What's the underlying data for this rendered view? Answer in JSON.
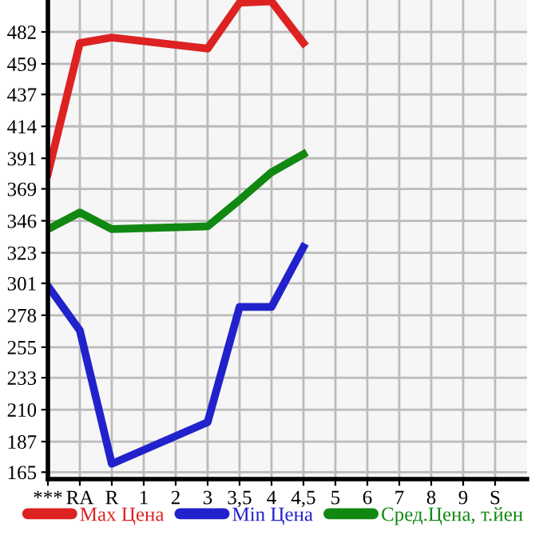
{
  "chart_data": {
    "type": "line",
    "categories": [
      "***",
      "RA",
      "R",
      "1",
      "2",
      "3",
      "3,5",
      "4",
      "4,5",
      "5",
      "6",
      "7",
      "8",
      "9",
      "S"
    ],
    "series": [
      {
        "name": "Max Цена",
        "color": "#dd2222",
        "values": [
          380,
          474,
          478,
          null,
          null,
          470,
          503,
          504,
          474,
          null,
          null,
          null,
          null,
          null,
          null
        ]
      },
      {
        "name": "Min Цена",
        "color": "#2222cc",
        "values": [
          299,
          267,
          171,
          null,
          null,
          201,
          284,
          284,
          327,
          null,
          null,
          null,
          null,
          null,
          null
        ]
      },
      {
        "name": "Сред.Цена, т.йен",
        "color": "#118811",
        "values": [
          340,
          352,
          340,
          null,
          null,
          342,
          361,
          381,
          394,
          null,
          null,
          null,
          null,
          null,
          null
        ]
      }
    ],
    "ylim": [
      160,
      505
    ],
    "yticks": [
      165,
      187,
      210,
      233,
      255,
      278,
      301,
      323,
      346,
      369,
      391,
      414,
      437,
      459,
      482
    ],
    "grid": true,
    "legend": "bottom",
    "marker": "none",
    "line_style": "solid"
  }
}
